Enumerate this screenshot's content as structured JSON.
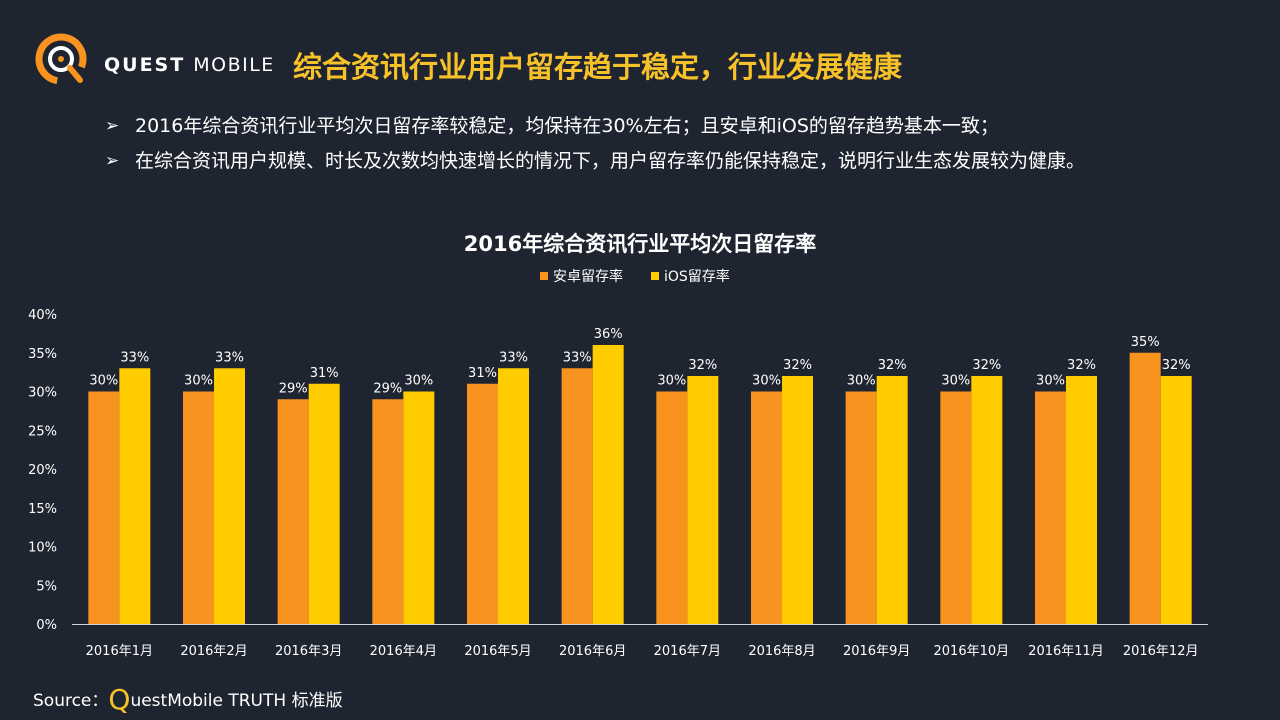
{
  "header": {
    "logo_word1": "QUEST",
    "logo_word2": "MOBILE",
    "title": "综合资讯行业用户留存趋于稳定，行业发展健康"
  },
  "bullets": [
    "2016年综合资讯行业平均次日留存率较稳定，均保持在30%左右；且安卓和iOS的留存趋势基本一致；",
    "在综合资讯用户规模、时长及次数均快速增长的情况下，用户留存率仍能保持稳定，说明行业生态发展较为健康。"
  ],
  "bullet_marker": "➢",
  "source": {
    "prefix": "Source：",
    "q_letter": "Q",
    "rest": "uestMobile TRUTH 标准版"
  },
  "colors": {
    "background": "#1f2530",
    "accent": "#f7c12a",
    "android": "#f7931e",
    "ios": "#ffcc00"
  },
  "icons": {
    "logo": "quest-mobile-logo-icon",
    "bullet": "arrow-bullet-icon"
  },
  "chart_data": {
    "type": "bar",
    "title": "2016年综合资讯行业平均次日留存率",
    "categories": [
      "2016年1月",
      "2016年2月",
      "2016年3月",
      "2016年4月",
      "2016年5月",
      "2016年6月",
      "2016年7月",
      "2016年8月",
      "2016年9月",
      "2016年10月",
      "2016年11月",
      "2016年12月"
    ],
    "series": [
      {
        "name": "安卓留存率",
        "color": "#f7931e",
        "values": [
          30,
          30,
          29,
          29,
          31,
          33,
          30,
          30,
          30,
          30,
          30,
          35
        ]
      },
      {
        "name": "iOS留存率",
        "color": "#ffcc00",
        "values": [
          33,
          33,
          31,
          30,
          33,
          36,
          32,
          32,
          32,
          32,
          32,
          32
        ]
      }
    ],
    "value_suffix": "%",
    "ylim": [
      0,
      40
    ],
    "yticks": [
      0,
      5,
      10,
      15,
      20,
      25,
      30,
      35,
      40
    ],
    "ytick_labels": [
      "0%",
      "5%",
      "10%",
      "15%",
      "20%",
      "25%",
      "30%",
      "35%",
      "40%"
    ],
    "xlabel": "",
    "ylabel": "",
    "grid": false,
    "legend_position": "top-center"
  }
}
